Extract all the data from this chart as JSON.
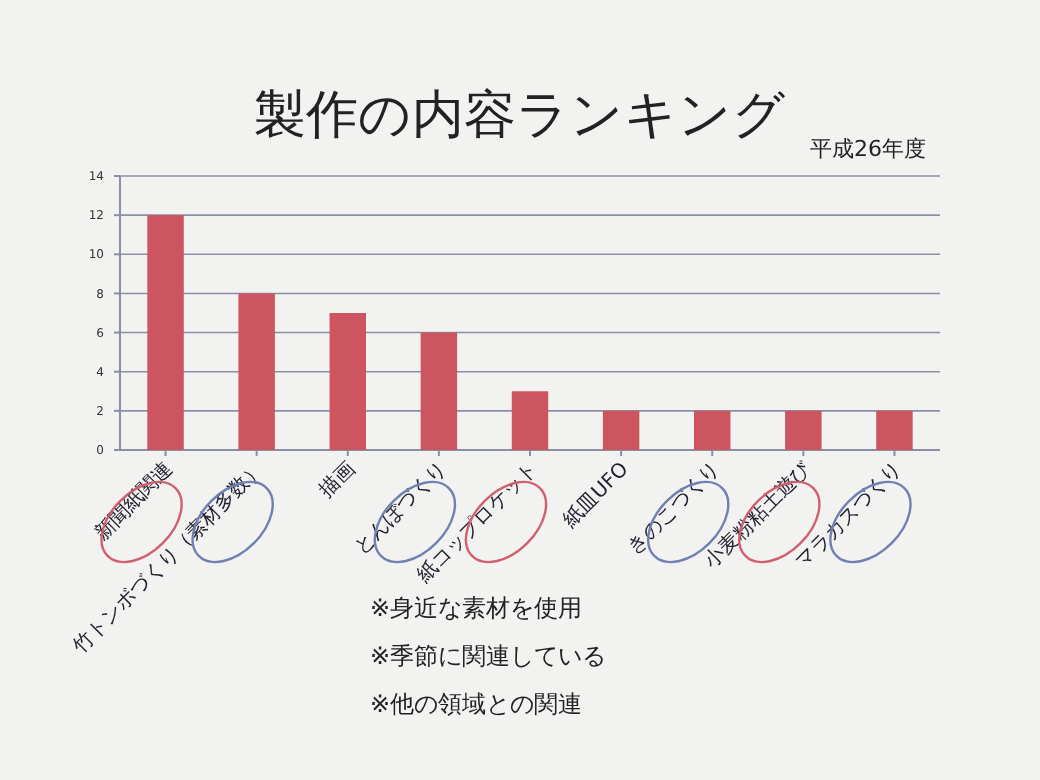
{
  "chart_data": {
    "type": "bar",
    "title": "製作の内容ランキング",
    "subtitle": "平成26年度",
    "categories": [
      "新聞紙関連",
      "竹トンボづくり（素材多数）",
      "描画",
      "とんぼづくり",
      "紙コップロケット",
      "紙皿UFO",
      "きのこづくり",
      "小麦粉粘土遊び",
      "マラカスづくり"
    ],
    "values": [
      12,
      8,
      7,
      6,
      3,
      2,
      2,
      2,
      2
    ],
    "color": "#cc5560",
    "ylim": [
      0,
      14
    ],
    "yticks": [
      0,
      2,
      4,
      6,
      8,
      10,
      12,
      14
    ],
    "grid": "y",
    "annotations": [
      "※身近な素材を使用",
      "※季節に関連している",
      "※他の領域との関連"
    ]
  }
}
